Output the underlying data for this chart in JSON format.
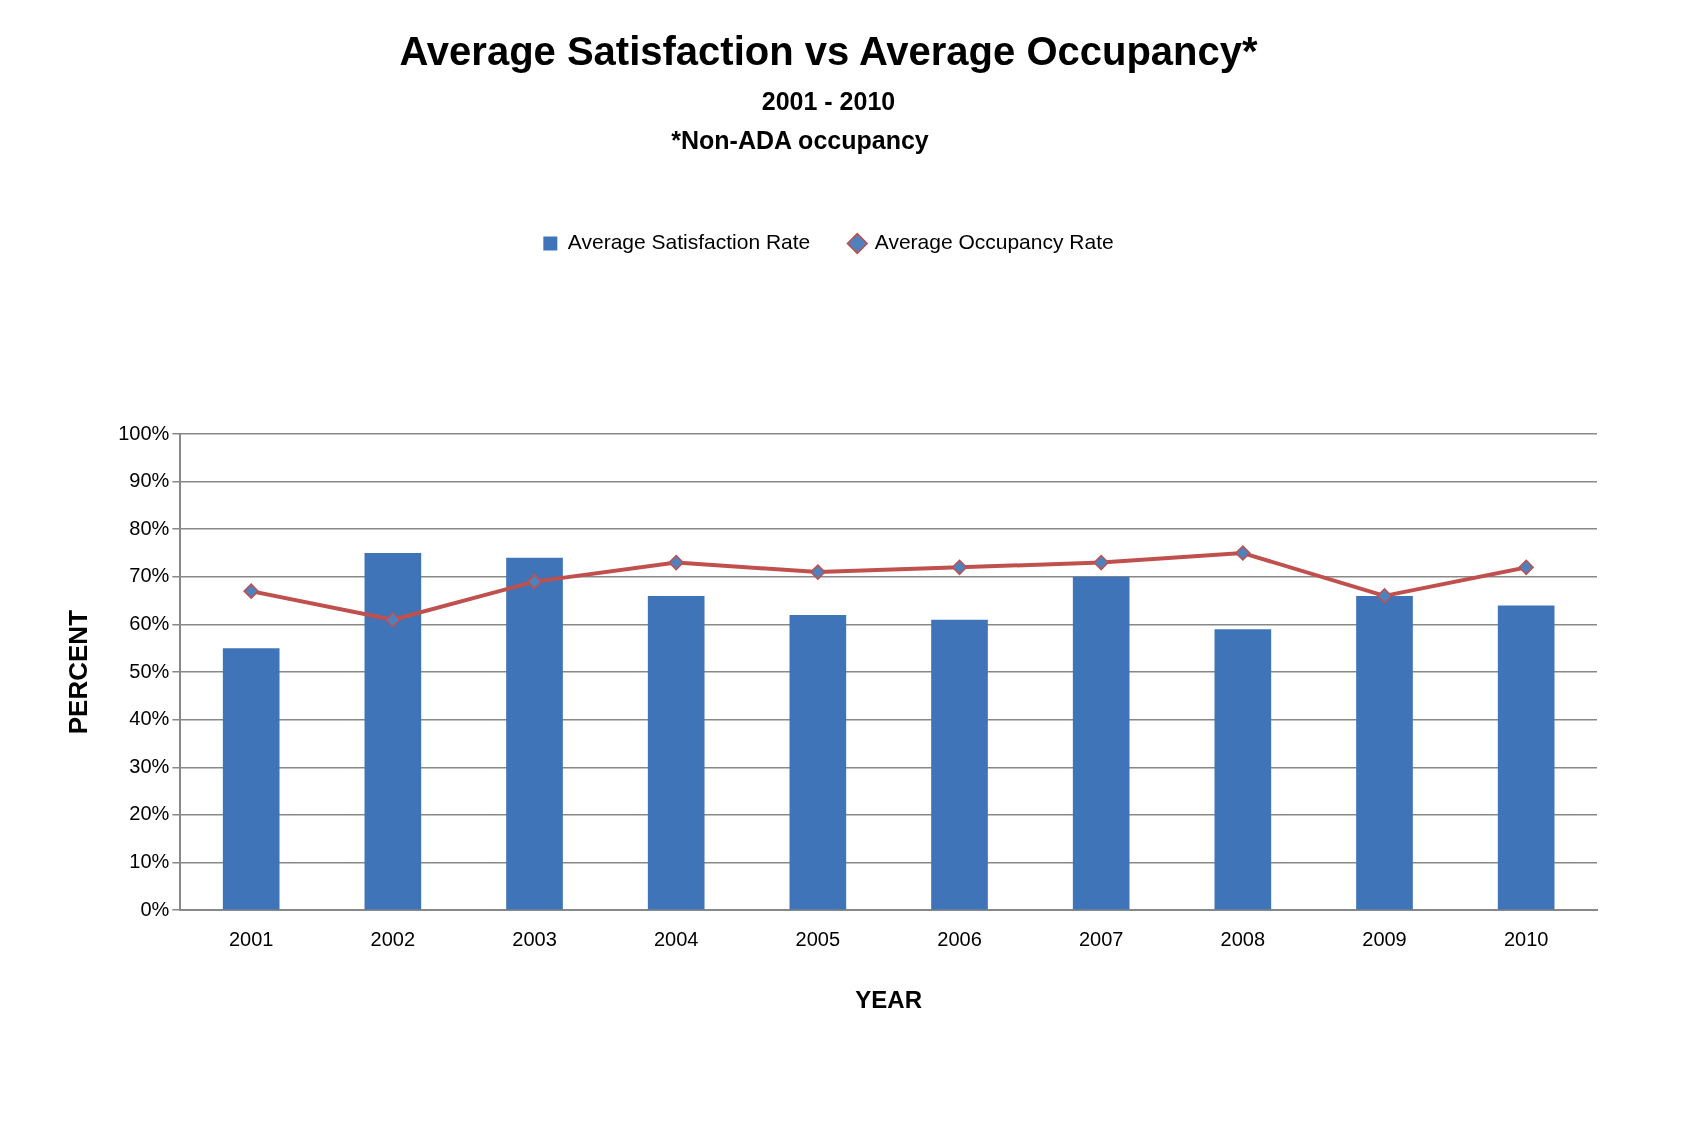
{
  "chart_data": {
    "type": "bar",
    "title": "Average Satisfaction vs Average Occupancy*",
    "subtitle": "2001 - 2010",
    "annotations": [
      "*Non-ADA occupancy"
    ],
    "xlabel": "YEAR",
    "ylabel": "PERCENT",
    "categories": [
      "2001",
      "2002",
      "2003",
      "2004",
      "2005",
      "2006",
      "2007",
      "2008",
      "2009",
      "2010"
    ],
    "series": [
      {
        "name": "Average Satisfaction Rate",
        "color": "#3f74b8",
        "values": [
          55,
          75,
          74,
          66,
          62,
          61,
          70,
          59,
          66,
          64
        ]
      },
      {
        "name": "Average Occupancy Rate",
        "type": "line",
        "color": "#c0504d",
        "marker": "diamond",
        "values": [
          67,
          61,
          69,
          73,
          71,
          72,
          73,
          75,
          66,
          72
        ]
      }
    ],
    "ylim": [
      0,
      100
    ],
    "yticks": [
      {
        "value": 0,
        "label": "0%"
      },
      {
        "value": 10,
        "label": "10%"
      },
      {
        "value": 20,
        "label": "20%"
      },
      {
        "value": 30,
        "label": "30%"
      },
      {
        "value": 40,
        "label": "40%"
      },
      {
        "value": 50,
        "label": "50%"
      },
      {
        "value": 60,
        "label": "60%"
      },
      {
        "value": 70,
        "label": "70%"
      },
      {
        "value": 80,
        "label": "80%"
      },
      {
        "value": 90,
        "label": "90%"
      },
      {
        "value": 100,
        "label": "100%"
      }
    ],
    "grid": "y",
    "legend": "top"
  }
}
